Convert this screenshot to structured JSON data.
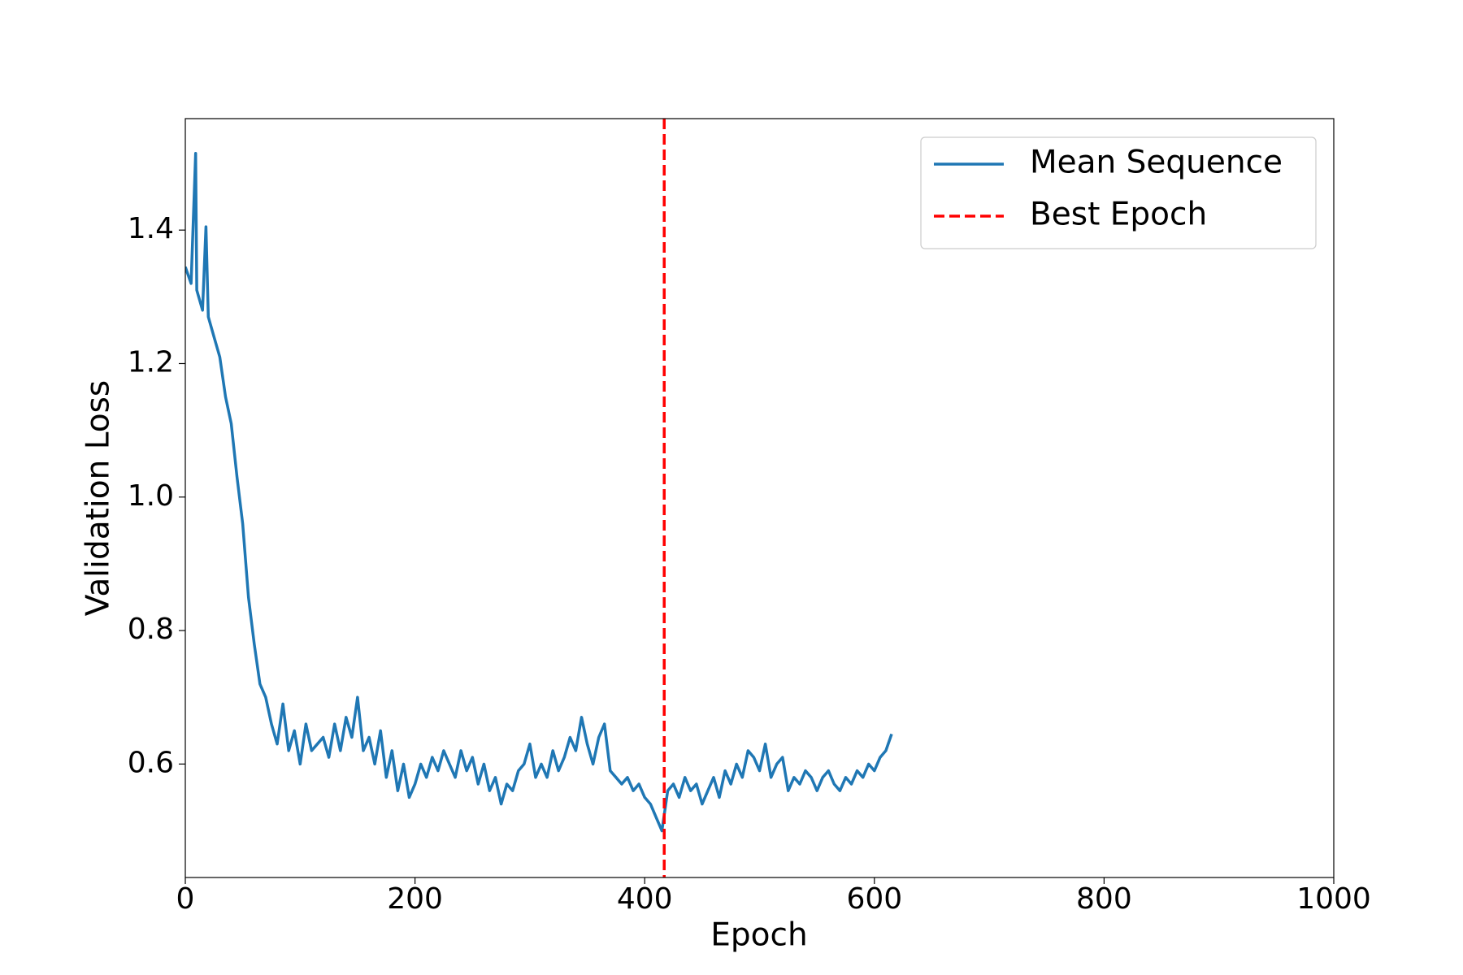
{
  "chart_data": {
    "type": "line",
    "xlabel": "Epoch",
    "ylabel": "Validation Loss",
    "xlim": [
      0,
      1000
    ],
    "ylim": [
      0.43,
      1.567
    ],
    "xticks": [
      0,
      200,
      400,
      600,
      800,
      1000
    ],
    "yticks": [
      0.6,
      0.8,
      {
        "value": 1,
        "label": "1.0"
      },
      1.2,
      1.4
    ],
    "legend": "upper right",
    "series": [
      {
        "name": "Mean Sequence",
        "color": "#1f77b4",
        "x": [
          0,
          5,
          9,
          10,
          15,
          18,
          20,
          25,
          30,
          35,
          40,
          45,
          50,
          55,
          60,
          65,
          70,
          75,
          80,
          85,
          90,
          95,
          100,
          105,
          110,
          115,
          120,
          125,
          130,
          135,
          140,
          145,
          150,
          155,
          160,
          165,
          170,
          175,
          180,
          185,
          190,
          195,
          200,
          205,
          210,
          215,
          220,
          225,
          230,
          235,
          240,
          245,
          250,
          255,
          260,
          265,
          270,
          275,
          280,
          285,
          290,
          295,
          300,
          305,
          310,
          315,
          320,
          325,
          330,
          335,
          340,
          345,
          350,
          355,
          360,
          365,
          370,
          375,
          380,
          385,
          390,
          395,
          400,
          405,
          410,
          415,
          420,
          425,
          430,
          435,
          440,
          445,
          450,
          455,
          460,
          465,
          470,
          475,
          480,
          485,
          490,
          495,
          500,
          505,
          510,
          515,
          520,
          525,
          530,
          535,
          540,
          545,
          550,
          555,
          560,
          565,
          570,
          575,
          580,
          585,
          590,
          595,
          600,
          605,
          610,
          615
        ],
        "values": [
          1.345,
          1.32,
          1.515,
          1.31,
          1.28,
          1.405,
          1.27,
          1.24,
          1.21,
          1.15,
          1.11,
          1.03,
          0.96,
          0.85,
          0.78,
          0.72,
          0.7,
          0.66,
          0.63,
          0.69,
          0.62,
          0.65,
          0.6,
          0.66,
          0.62,
          0.63,
          0.64,
          0.61,
          0.66,
          0.62,
          0.67,
          0.64,
          0.7,
          0.62,
          0.64,
          0.6,
          0.65,
          0.58,
          0.62,
          0.56,
          0.6,
          0.55,
          0.57,
          0.6,
          0.58,
          0.61,
          0.59,
          0.62,
          0.6,
          0.58,
          0.62,
          0.59,
          0.61,
          0.57,
          0.6,
          0.56,
          0.58,
          0.54,
          0.57,
          0.56,
          0.59,
          0.6,
          0.63,
          0.58,
          0.6,
          0.58,
          0.62,
          0.59,
          0.61,
          0.64,
          0.62,
          0.67,
          0.63,
          0.6,
          0.64,
          0.66,
          0.59,
          0.58,
          0.57,
          0.58,
          0.56,
          0.57,
          0.55,
          0.54,
          0.52,
          0.5,
          0.56,
          0.57,
          0.55,
          0.58,
          0.56,
          0.57,
          0.54,
          0.56,
          0.58,
          0.55,
          0.59,
          0.57,
          0.6,
          0.58,
          0.62,
          0.61,
          0.59,
          0.63,
          0.58,
          0.6,
          0.61,
          0.56,
          0.58,
          0.57,
          0.59,
          0.58,
          0.56,
          0.58,
          0.59,
          0.57,
          0.56,
          0.58,
          0.57,
          0.59,
          0.58,
          0.6,
          0.59,
          0.61,
          0.62,
          0.645
        ]
      }
    ],
    "vlines": [
      {
        "name": "Best Epoch",
        "color": "#ff0000",
        "x": 417
      }
    ]
  }
}
